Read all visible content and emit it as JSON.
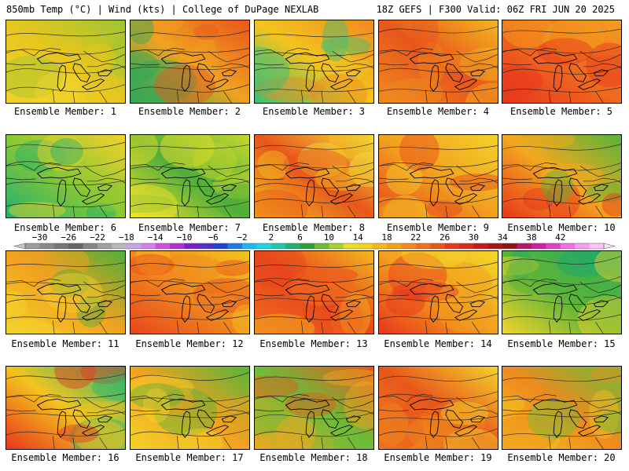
{
  "header": {
    "left": "850mb Temp (°C) | Wind (kts) | College of DuPage NEXLAB",
    "right": "18Z GEFS | F300 Valid: 06Z FRI JUN 20 2025"
  },
  "panel_label_prefix": "Ensemble Member: ",
  "members": [
    {
      "label": "Ensemble Member: 1",
      "palette": [
        "#f2d22a",
        "#e8c61f",
        "#9fc530"
      ],
      "warm": 0.35
    },
    {
      "label": "Ensemble Member: 2",
      "palette": [
        "#28a95a",
        "#f2a21f",
        "#e8561c"
      ],
      "warm": 0.55
    },
    {
      "label": "Ensemble Member: 3",
      "palette": [
        "#3cbf78",
        "#f3c41e",
        "#f08a1e"
      ],
      "warm": 0.5
    },
    {
      "label": "Ensemble Member: 4",
      "palette": [
        "#f08c1e",
        "#e8561c",
        "#f3b81e"
      ],
      "warm": 0.7
    },
    {
      "label": "Ensemble Member: 5",
      "palette": [
        "#e8361c",
        "#f06a1e",
        "#f3a01e"
      ],
      "warm": 0.85
    },
    {
      "label": "Ensemble Member: 6",
      "palette": [
        "#22b072",
        "#8cc832",
        "#f2d22a"
      ],
      "warm": 0.3
    },
    {
      "label": "Ensemble Member: 7",
      "palette": [
        "#f3e22a",
        "#4fae3a",
        "#c8d82c"
      ],
      "warm": 0.2
    },
    {
      "label": "Ensemble Member: 8",
      "palette": [
        "#f3c01e",
        "#e8561c",
        "#f2e03a"
      ],
      "warm": 0.55
    },
    {
      "label": "Ensemble Member: 9",
      "palette": [
        "#e8461c",
        "#f2a01e",
        "#f3d22a"
      ],
      "warm": 0.75
    },
    {
      "label": "Ensemble Member: 10",
      "palette": [
        "#e8361c",
        "#f3a81e",
        "#56b43a"
      ],
      "warm": 0.65
    },
    {
      "label": "Ensemble Member: 11",
      "palette": [
        "#f3d22a",
        "#f2a21f",
        "#4fae3a"
      ],
      "warm": 0.4
    },
    {
      "label": "Ensemble Member: 12",
      "palette": [
        "#e8461c",
        "#f08a1e",
        "#f3c41e"
      ],
      "warm": 0.8
    },
    {
      "label": "Ensemble Member: 13",
      "palette": [
        "#f06a1e",
        "#e8461c",
        "#f3b81e"
      ],
      "warm": 0.75
    },
    {
      "label": "Ensemble Member: 14",
      "palette": [
        "#e8361c",
        "#f2a01e",
        "#f3d82a"
      ],
      "warm": 0.8
    },
    {
      "label": "Ensemble Member: 15",
      "palette": [
        "#f3d22a",
        "#58b43a",
        "#1fa86a"
      ],
      "warm": 0.3
    },
    {
      "label": "Ensemble Member: 16",
      "palette": [
        "#e8361c",
        "#f3c41e",
        "#2ab870"
      ],
      "warm": 0.6
    },
    {
      "label": "Ensemble Member: 17",
      "palette": [
        "#f3d22a",
        "#f2a21f",
        "#56b43a"
      ],
      "warm": 0.4
    },
    {
      "label": "Ensemble Member: 18",
      "palette": [
        "#f3a81e",
        "#6cbc3a",
        "#e8561c"
      ],
      "warm": 0.5
    },
    {
      "label": "Ensemble Member: 19",
      "palette": [
        "#f08a1e",
        "#e8561c",
        "#f3d22a"
      ],
      "warm": 0.65
    },
    {
      "label": "Ensemble Member: 20",
      "palette": [
        "#f3c41e",
        "#f08a1e",
        "#6cbc3a"
      ],
      "warm": 0.55
    }
  ],
  "colorbar": {
    "tick_labels": [
      "−30",
      "−26",
      "−22",
      "−18",
      "−14",
      "−10",
      "−6",
      "−2",
      "2",
      "6",
      "10",
      "14",
      "18",
      "22",
      "26",
      "30",
      "34",
      "38",
      "42"
    ],
    "colors": [
      "#9c9c9c",
      "#8a8a8a",
      "#777777",
      "#666666",
      "#858585",
      "#a0a0a0",
      "#b8b8b8",
      "#c9a5e0",
      "#d680e8",
      "#d050d8",
      "#b030d0",
      "#7a20c8",
      "#5030c8",
      "#2040d0",
      "#1e7ae6",
      "#1eb8f0",
      "#22d4e0",
      "#20c8a8",
      "#20b070",
      "#2e9e3c",
      "#6cbc3a",
      "#a8d032",
      "#e8e02a",
      "#f3d21e",
      "#f3b81e",
      "#f2a01e",
      "#f08a1e",
      "#ee721e",
      "#e8561c",
      "#e43a1c",
      "#d82a1c",
      "#c01c1c",
      "#a01818",
      "#8a1818",
      "#b01868",
      "#d020a0",
      "#e040c8",
      "#f070e0",
      "#f4a0f0",
      "#f8c8f8"
    ]
  }
}
